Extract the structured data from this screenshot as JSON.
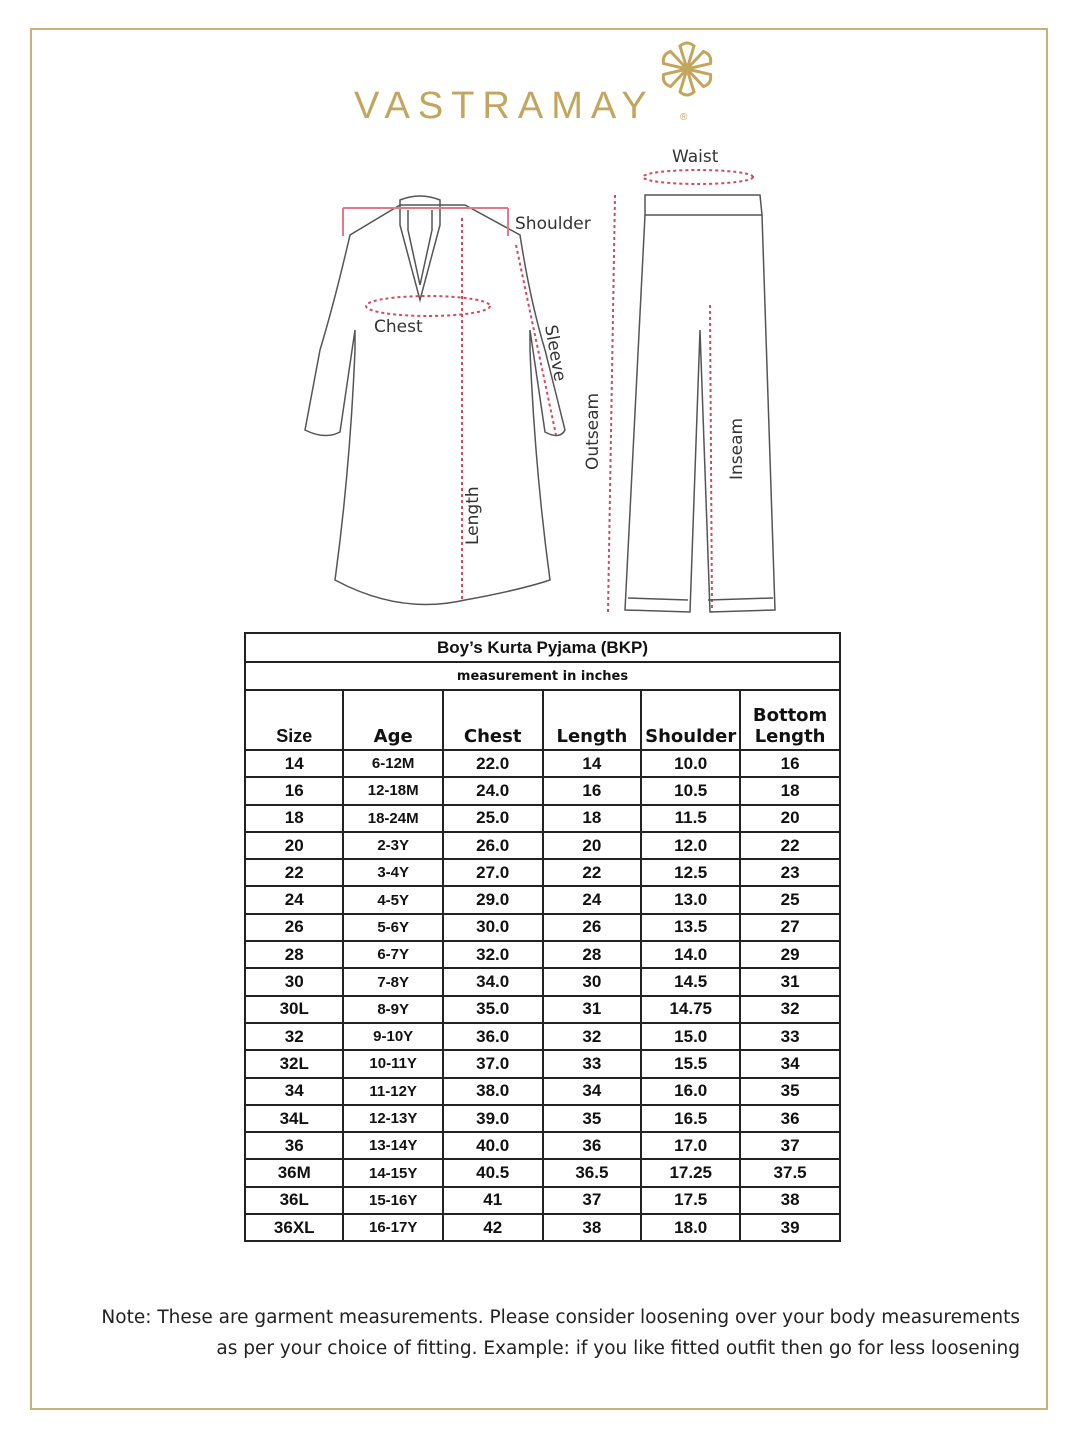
{
  "brand": {
    "name": "VASTRAMAY",
    "registered": "®",
    "accent_color": "#c4a55e"
  },
  "illustration": {
    "kurta_labels": {
      "shoulder": "Shoulder",
      "chest": "Chest",
      "sleeve": "Sleeve",
      "length": "Length"
    },
    "pyjama_labels": {
      "waist": "Waist",
      "outseam": "Outseam",
      "inseam": "Inseam"
    }
  },
  "table": {
    "title": "Boy’s Kurta Pyjama (BKP)",
    "subtitle": "measurement in inches",
    "headers": [
      "Size",
      "Age",
      "Chest",
      "Length",
      "Shoulder",
      "Bottom Length"
    ],
    "header_bottom_line1": "Bottom",
    "header_bottom_line2": "Length",
    "rows": [
      [
        "14",
        "6-12M",
        "22.0",
        "14",
        "10.0",
        "16"
      ],
      [
        "16",
        "12-18M",
        "24.0",
        "16",
        "10.5",
        "18"
      ],
      [
        "18",
        "18-24M",
        "25.0",
        "18",
        "11.5",
        "20"
      ],
      [
        "20",
        "2-3Y",
        "26.0",
        "20",
        "12.0",
        "22"
      ],
      [
        "22",
        "3-4Y",
        "27.0",
        "22",
        "12.5",
        "23"
      ],
      [
        "24",
        "4-5Y",
        "29.0",
        "24",
        "13.0",
        "25"
      ],
      [
        "26",
        "5-6Y",
        "30.0",
        "26",
        "13.5",
        "27"
      ],
      [
        "28",
        "6-7Y",
        "32.0",
        "28",
        "14.0",
        "29"
      ],
      [
        "30",
        "7-8Y",
        "34.0",
        "30",
        "14.5",
        "31"
      ],
      [
        "30L",
        "8-9Y",
        "35.0",
        "31",
        "14.75",
        "32"
      ],
      [
        "32",
        "9-10Y",
        "36.0",
        "32",
        "15.0",
        "33"
      ],
      [
        "32L",
        "10-11Y",
        "37.0",
        "33",
        "15.5",
        "34"
      ],
      [
        "34",
        "11-12Y",
        "38.0",
        "34",
        "16.0",
        "35"
      ],
      [
        "34L",
        "12-13Y",
        "39.0",
        "35",
        "16.5",
        "36"
      ],
      [
        "36",
        "13-14Y",
        "40.0",
        "36",
        "17.0",
        "37"
      ],
      [
        "36M",
        "14-15Y",
        "40.5",
        "36.5",
        "17.25",
        "37.5"
      ],
      [
        "36L",
        "15-16Y",
        "41",
        "37",
        "17.5",
        "38"
      ],
      [
        "36XL",
        "16-17Y",
        "42",
        "38",
        "18.0",
        "39"
      ]
    ]
  },
  "note": {
    "line1": "Note: These are garment measurements. Please consider loosening over your body measurements",
    "line2": "as per your choice of fitting. Example: if you like fitted outfit then go for less loosening"
  }
}
